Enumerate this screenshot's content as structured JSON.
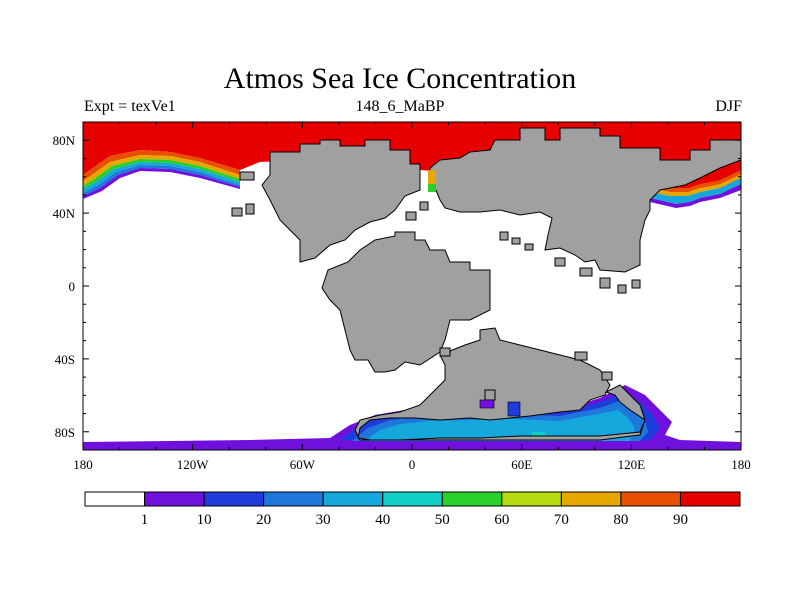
{
  "title": "Atmos Sea Ice Concentration",
  "subtitle_left": "Expt = texVe1",
  "subtitle_center": "148_6_MaBP",
  "subtitle_right": "DJF",
  "lon_labels": [
    "180",
    "120W",
    "60W",
    "0",
    "60E",
    "120E",
    "180"
  ],
  "lat_labels": [
    "80N",
    "40N",
    "0",
    "40S",
    "80S"
  ],
  "colorbar": {
    "labels": [
      "1",
      "10",
      "20",
      "30",
      "40",
      "50",
      "60",
      "70",
      "80",
      "90"
    ],
    "colors": [
      "#ffffff",
      "#7010dc",
      "#1e3cdc",
      "#1e78dc",
      "#16a8dc",
      "#10d0c8",
      "#28d028",
      "#b4dc10",
      "#e6a800",
      "#e65000",
      "#e60000"
    ]
  },
  "map_colors": {
    "land": "#a0a0a0",
    "land_outline": "#000000",
    "ice_high": "#e60000",
    "ice_purple": "#7010dc"
  }
}
